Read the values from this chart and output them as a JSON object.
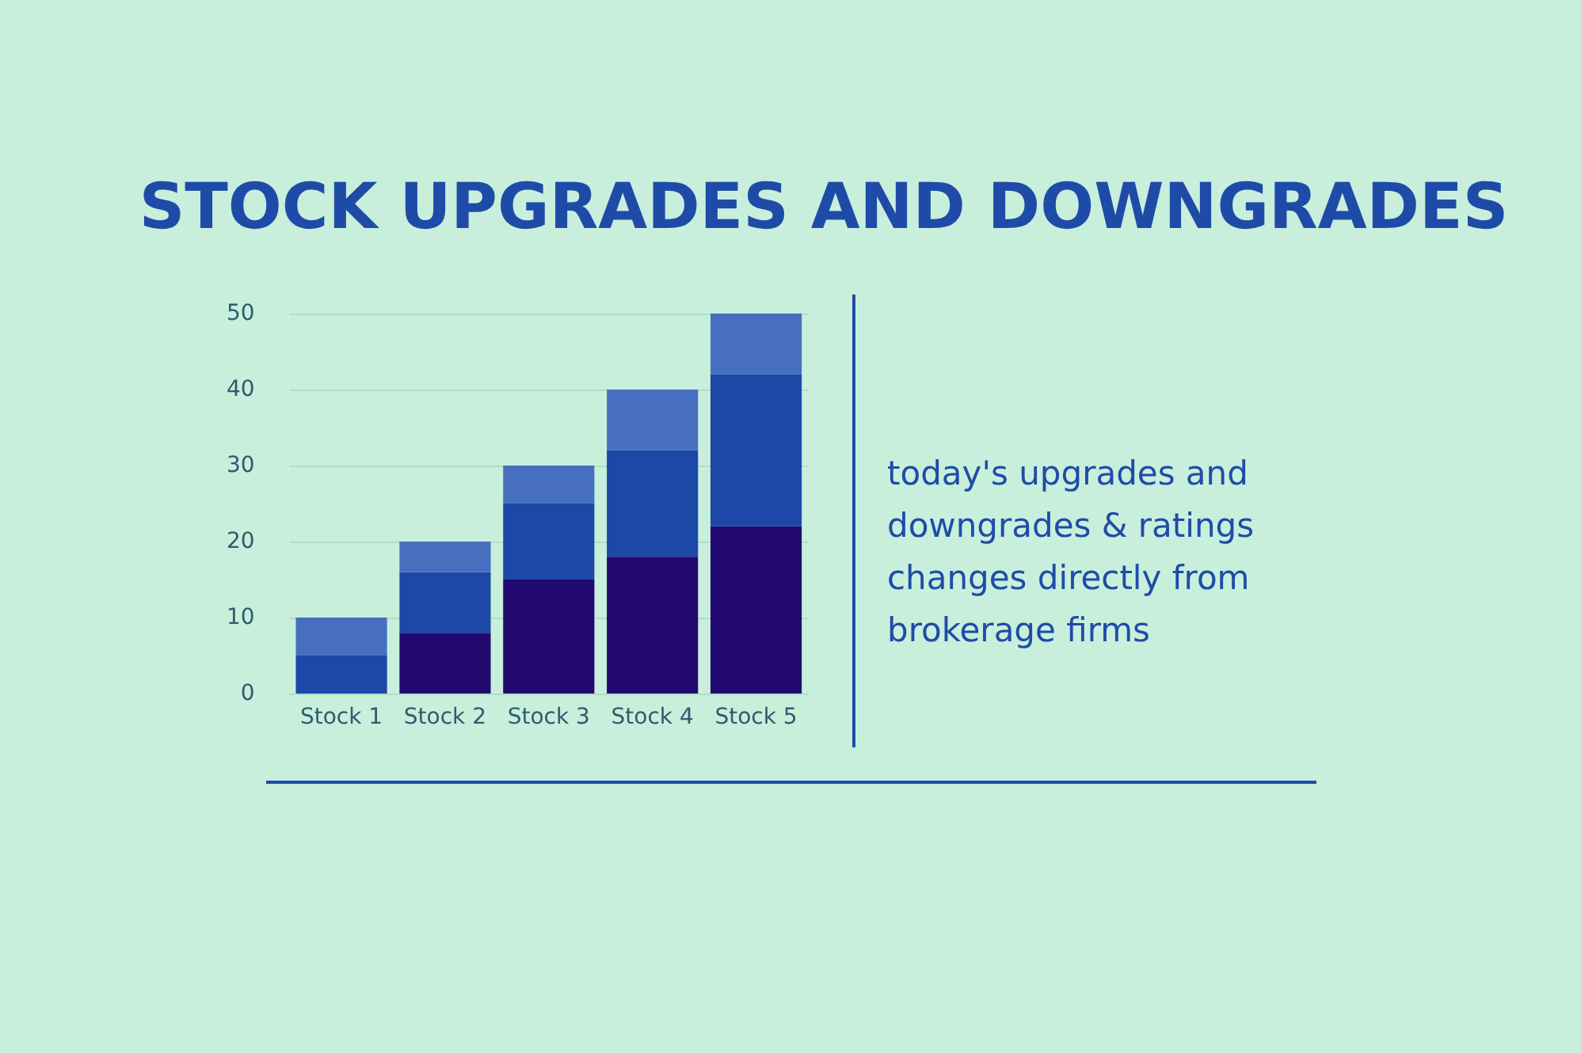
{
  "chart_data": {
    "type": "bar",
    "title": "STOCK UPGRADES AND DOWNGRADES",
    "categories": [
      "Stock 1",
      "Stock 2",
      "Stock 3",
      "Stock 4",
      "Stock 5"
    ],
    "stacked": true,
    "series": [
      {
        "color": "#22096f",
        "values": [
          0,
          8,
          15,
          18,
          22
        ]
      },
      {
        "color": "#1d48a8",
        "values": [
          5,
          8,
          10,
          14,
          20
        ]
      },
      {
        "color": "#476fc0",
        "values": [
          5,
          4,
          5,
          8,
          8
        ]
      }
    ],
    "ylim": [
      0,
      50
    ],
    "yticks": [
      0,
      10,
      20,
      30,
      40,
      50
    ],
    "grid": "y",
    "annotations": [
      "today's upgrades and downgrades & ratings changes directly from brokerage firms"
    ]
  }
}
